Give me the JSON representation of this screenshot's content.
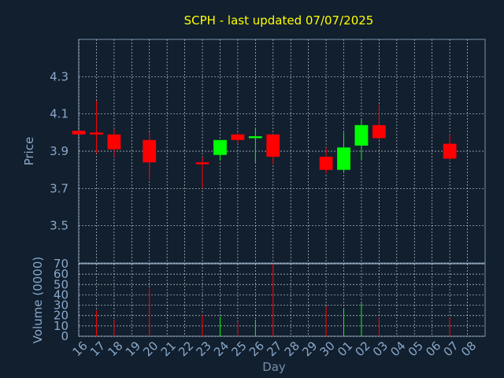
{
  "chart_data": {
    "type": "candlestick",
    "title": "SCPH - last updated 07/07/2025",
    "xlabel": "Day",
    "price_ylabel": "Price",
    "volume_ylabel": "Volume (0000)",
    "x_ticks": [
      "16",
      "17",
      "18",
      "19",
      "20",
      "21",
      "22",
      "23",
      "24",
      "25",
      "26",
      "27",
      "28",
      "29",
      "30",
      "01",
      "02",
      "03",
      "04",
      "05",
      "06",
      "07",
      "08"
    ],
    "price_ylim": [
      3.3,
      4.5
    ],
    "price_ticks": [
      "3.5",
      "3.7",
      "3.9",
      "4.1",
      "4.3"
    ],
    "volume_ylim": [
      0,
      70
    ],
    "volume_ticks": [
      "0",
      "10",
      "20",
      "30",
      "40",
      "50",
      "60",
      "70"
    ],
    "grid": true,
    "colors": {
      "up": "#00ff00",
      "down": "#ff0000",
      "background": "#111f2f",
      "axes": "#7a90a8",
      "title": "#ffff00"
    },
    "candles": [
      {
        "day": "16",
        "open": 4.01,
        "high": 4.01,
        "low": 3.99,
        "close": 3.99,
        "volume": 0
      },
      {
        "day": "17",
        "open": 4.0,
        "high": 4.17,
        "low": 3.89,
        "close": 3.99,
        "volume": 25
      },
      {
        "day": "18",
        "open": 3.99,
        "high": 4.02,
        "low": 3.87,
        "close": 3.91,
        "volume": 16
      },
      {
        "day": "20",
        "open": 3.96,
        "high": 4.0,
        "low": 3.75,
        "close": 3.84,
        "volume": 46
      },
      {
        "day": "23",
        "open": 3.84,
        "high": 3.87,
        "low": 3.7,
        "close": 3.83,
        "volume": 21
      },
      {
        "day": "24",
        "open": 3.88,
        "high": 3.96,
        "low": 3.85,
        "close": 3.96,
        "volume": 19
      },
      {
        "day": "25",
        "open": 3.99,
        "high": 4.0,
        "low": 3.94,
        "close": 3.96,
        "volume": 14
      },
      {
        "day": "26",
        "open": 3.97,
        "high": 4.02,
        "low": 3.84,
        "close": 3.98,
        "volume": 16
      },
      {
        "day": "27",
        "open": 3.99,
        "high": 3.99,
        "low": 3.83,
        "close": 3.87,
        "volume": 70
      },
      {
        "day": "30",
        "open": 3.87,
        "high": 3.92,
        "low": 3.78,
        "close": 3.8,
        "volume": 29
      },
      {
        "day": "01",
        "open": 3.8,
        "high": 4.0,
        "low": 3.79,
        "close": 3.92,
        "volume": 26
      },
      {
        "day": "02",
        "open": 3.93,
        "high": 4.07,
        "low": 3.85,
        "close": 4.04,
        "volume": 32
      },
      {
        "day": "03",
        "open": 4.04,
        "high": 4.15,
        "low": 3.96,
        "close": 3.97,
        "volume": 18
      },
      {
        "day": "07",
        "open": 3.94,
        "high": 3.99,
        "low": 3.85,
        "close": 3.86,
        "volume": 18
      }
    ]
  }
}
